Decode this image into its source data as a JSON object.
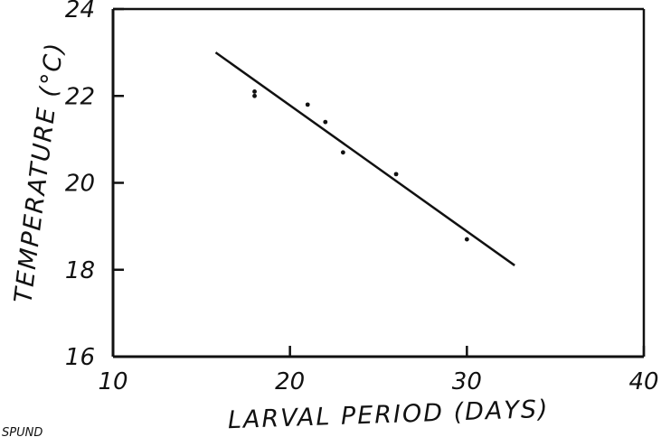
{
  "chart_data": {
    "type": "scatter",
    "title": "",
    "xlabel": "LARVAL PERIOD (DAYS)",
    "ylabel": "TEMPERATURE (°C)",
    "xlim": [
      10,
      40
    ],
    "ylim": [
      16,
      24
    ],
    "x_ticks": [
      "10",
      "20",
      "30",
      "40"
    ],
    "y_ticks": [
      "16",
      "18",
      "20",
      "22",
      "24"
    ],
    "grid": false,
    "points": [
      {
        "x": 18,
        "y": 22.1
      },
      {
        "x": 18,
        "y": 22.0
      },
      {
        "x": 21,
        "y": 21.8
      },
      {
        "x": 22,
        "y": 21.4
      },
      {
        "x": 23,
        "y": 20.7
      },
      {
        "x": 26,
        "y": 20.2
      },
      {
        "x": 30,
        "y": 18.7
      }
    ],
    "fit_line": {
      "x": [
        15.8,
        32.7
      ],
      "y": [
        23.0,
        18.1
      ]
    }
  },
  "footer": {
    "corner_text": "SPUND"
  }
}
